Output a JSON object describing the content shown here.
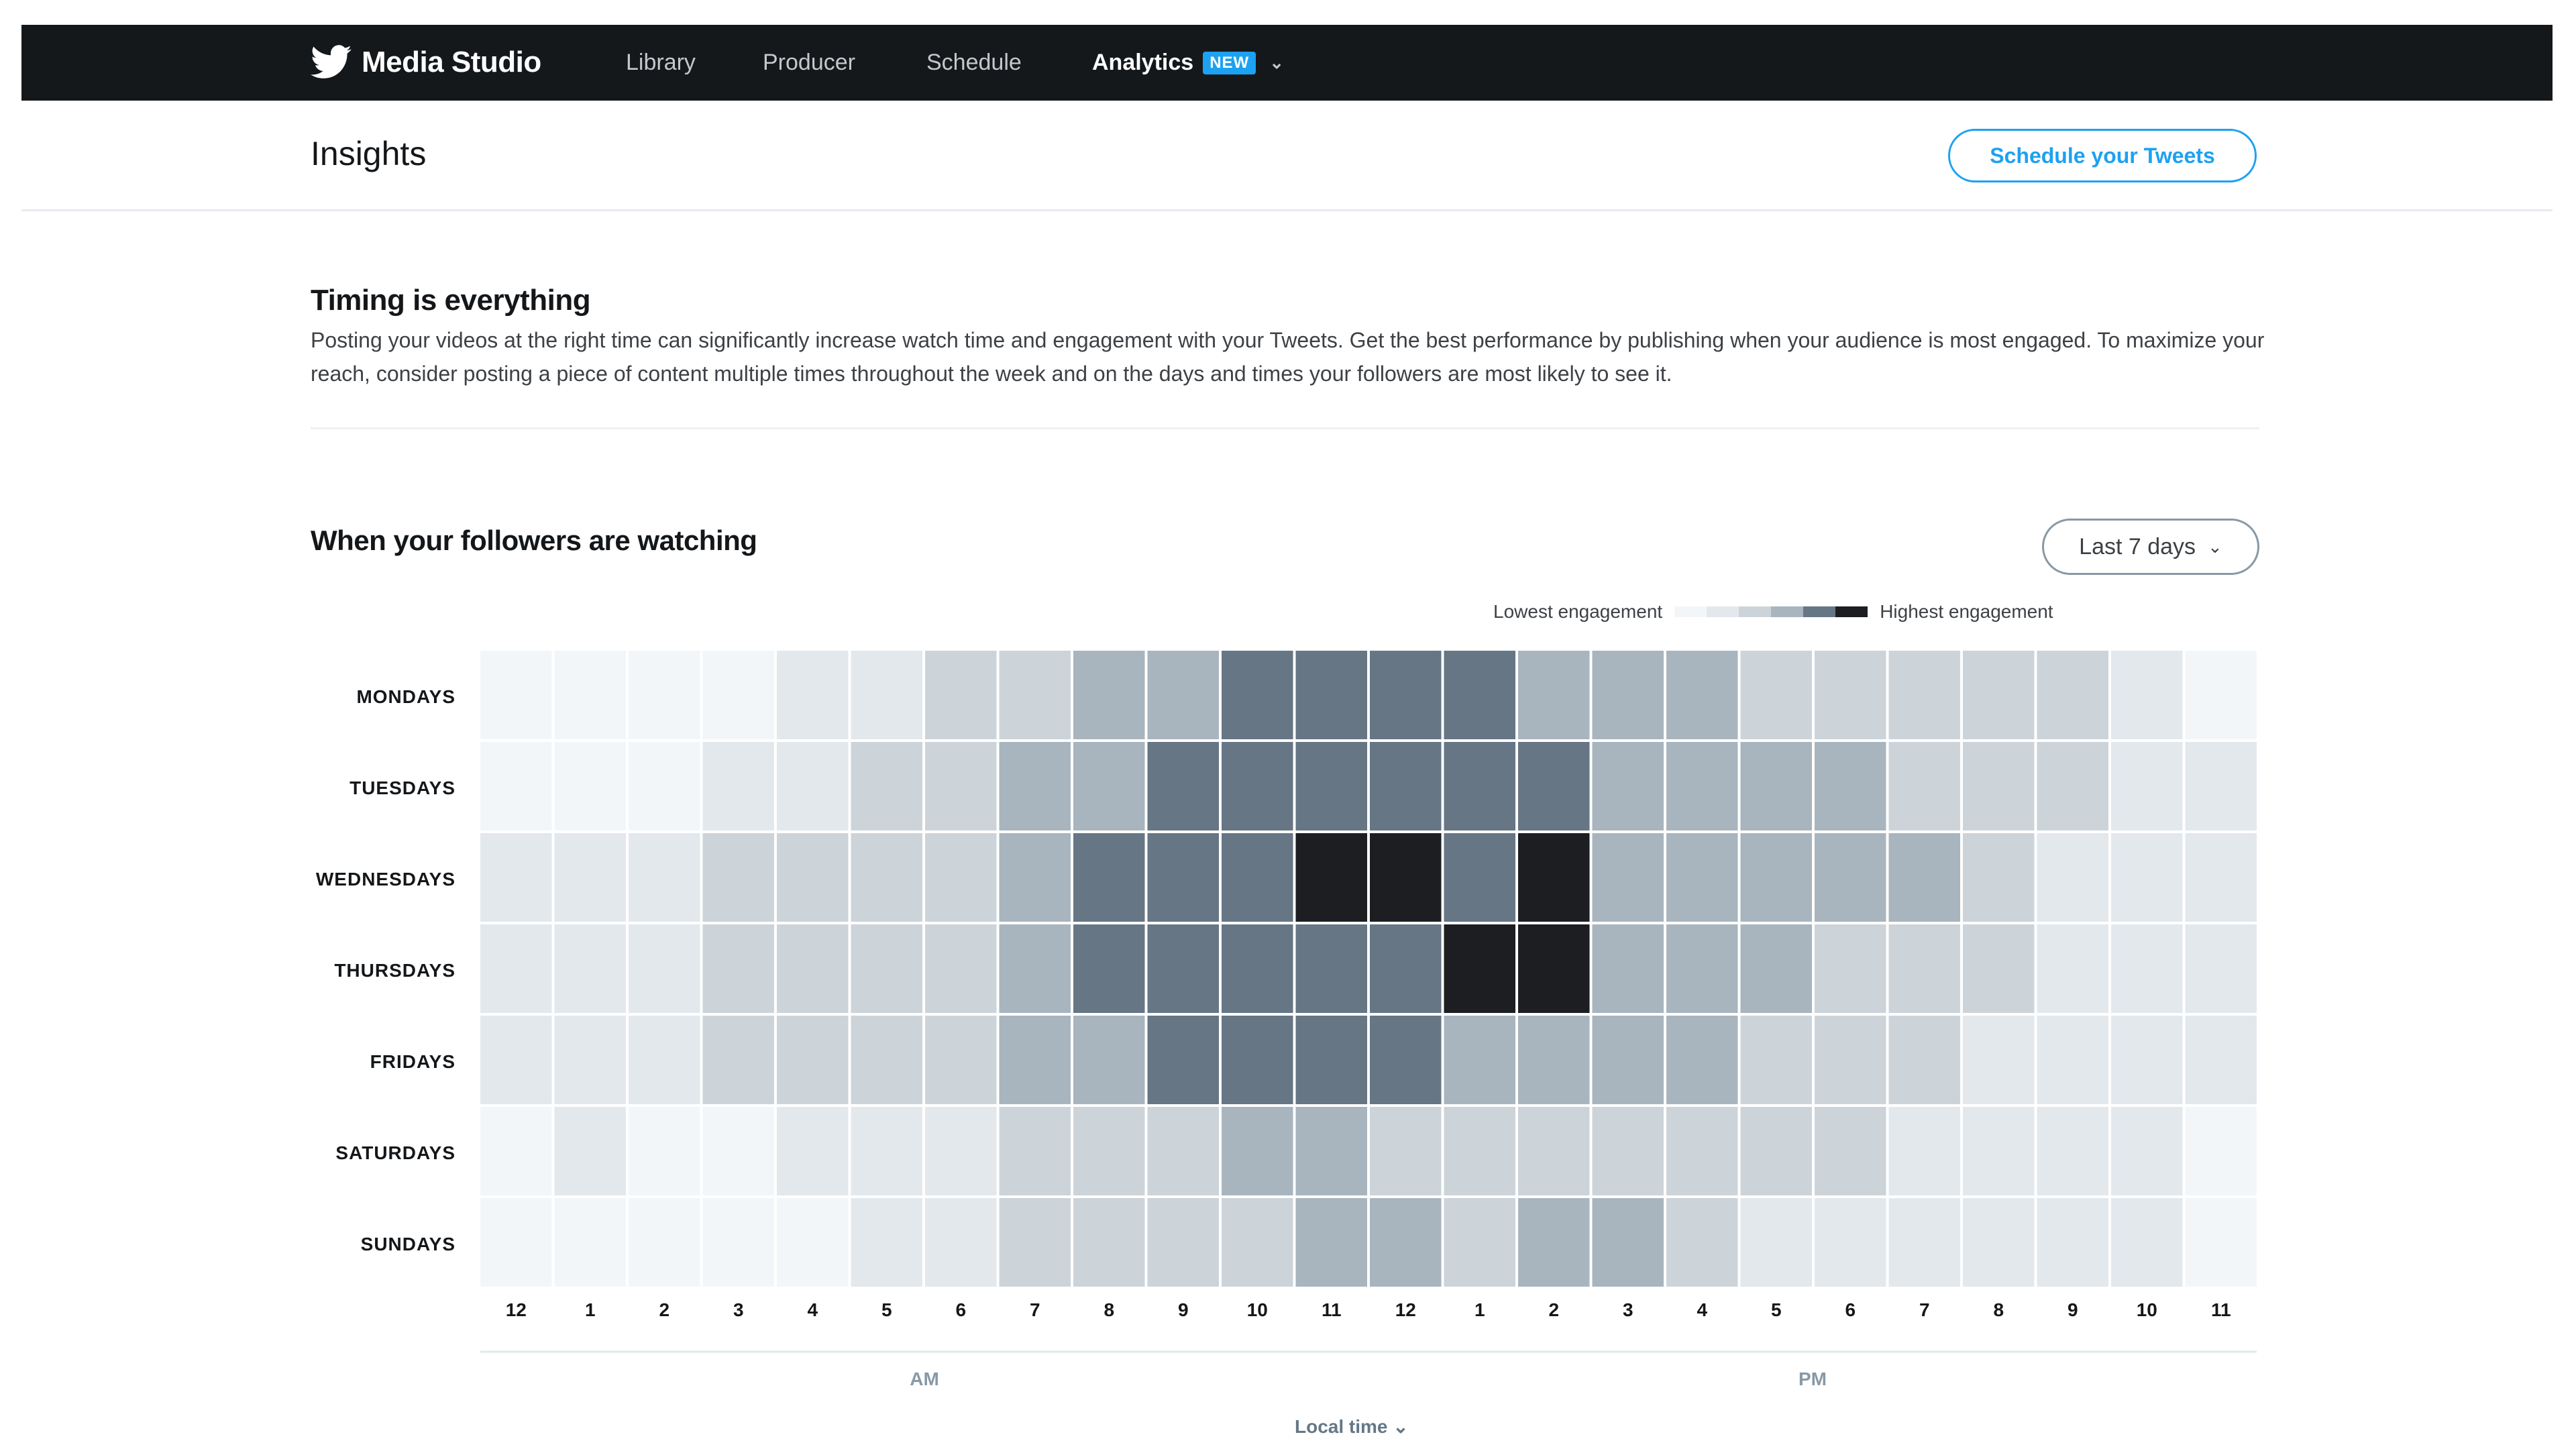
{
  "nav": {
    "brand": "Media Studio",
    "items": [
      {
        "label": "Library"
      },
      {
        "label": "Producer"
      },
      {
        "label": "Schedule"
      },
      {
        "label": "Analytics"
      }
    ],
    "badge": "NEW"
  },
  "header": {
    "title": "Insights",
    "cta": "Schedule your Tweets"
  },
  "intro": {
    "title": "Timing is everything",
    "body": "Posting your videos at the right time can significantly increase watch time and engagement with your Tweets. Get the best performance by publishing when your audience is most engaged. To maximize your reach, consider posting a piece of content multiple times throughout the week and on the days and times your followers are most likely to see it."
  },
  "section": {
    "title": "When your followers are watching",
    "range": "Last 7 days"
  },
  "legend": {
    "low": "Lowest engagement",
    "high": "Highest engagement"
  },
  "footer": {
    "local_time": "Local time"
  },
  "colors": {
    "topbar": "#15181b",
    "accent": "#1da1f2",
    "levels": [
      "#f3f6f8",
      "#e3e8ed",
      "#ccd4da",
      "#a9b5be",
      "#667685",
      "#1c1e21"
    ]
  },
  "chart_data": {
    "type": "heatmap",
    "title": "When your followers are watching",
    "rows": [
      "MONDAYS",
      "TUESDAYS",
      "WEDNESDAYS",
      "THURSDAYS",
      "FRIDAYS",
      "SATURDAYS",
      "SUNDAYS"
    ],
    "columns": [
      "12",
      "1",
      "2",
      "3",
      "4",
      "5",
      "6",
      "7",
      "8",
      "9",
      "10",
      "11",
      "12",
      "1",
      "2",
      "3",
      "4",
      "5",
      "6",
      "7",
      "8",
      "9",
      "10",
      "11"
    ],
    "column_groups": [
      "AM",
      "PM"
    ],
    "xlabel": "Local time",
    "scale": {
      "min": 0,
      "max": 5,
      "low_label": "Lowest engagement",
      "high_label": "Highest engagement"
    },
    "values": [
      [
        0,
        0,
        0,
        0,
        1,
        1,
        2,
        2,
        3,
        3,
        4,
        4,
        4,
        4,
        3,
        3,
        3,
        2,
        2,
        2,
        2,
        2,
        1,
        0
      ],
      [
        0,
        0,
        0,
        1,
        1,
        2,
        2,
        3,
        3,
        4,
        4,
        4,
        4,
        4,
        4,
        3,
        3,
        3,
        3,
        2,
        2,
        2,
        1,
        1
      ],
      [
        1,
        1,
        1,
        2,
        2,
        2,
        2,
        3,
        4,
        4,
        4,
        5,
        5,
        4,
        5,
        3,
        3,
        3,
        3,
        3,
        2,
        1,
        1,
        1
      ],
      [
        1,
        1,
        1,
        2,
        2,
        2,
        2,
        3,
        4,
        4,
        4,
        4,
        4,
        5,
        5,
        3,
        3,
        3,
        2,
        2,
        2,
        1,
        1,
        1
      ],
      [
        1,
        1,
        1,
        2,
        2,
        2,
        2,
        3,
        3,
        4,
        4,
        4,
        4,
        3,
        3,
        3,
        3,
        2,
        2,
        2,
        1,
        1,
        1,
        1
      ],
      [
        0,
        1,
        0,
        0,
        1,
        1,
        1,
        2,
        2,
        2,
        3,
        3,
        2,
        2,
        2,
        2,
        2,
        2,
        2,
        1,
        1,
        1,
        1,
        0
      ],
      [
        0,
        0,
        0,
        0,
        0,
        1,
        1,
        2,
        2,
        2,
        2,
        3,
        3,
        2,
        3,
        3,
        2,
        1,
        1,
        1,
        1,
        1,
        1,
        0
      ]
    ]
  }
}
